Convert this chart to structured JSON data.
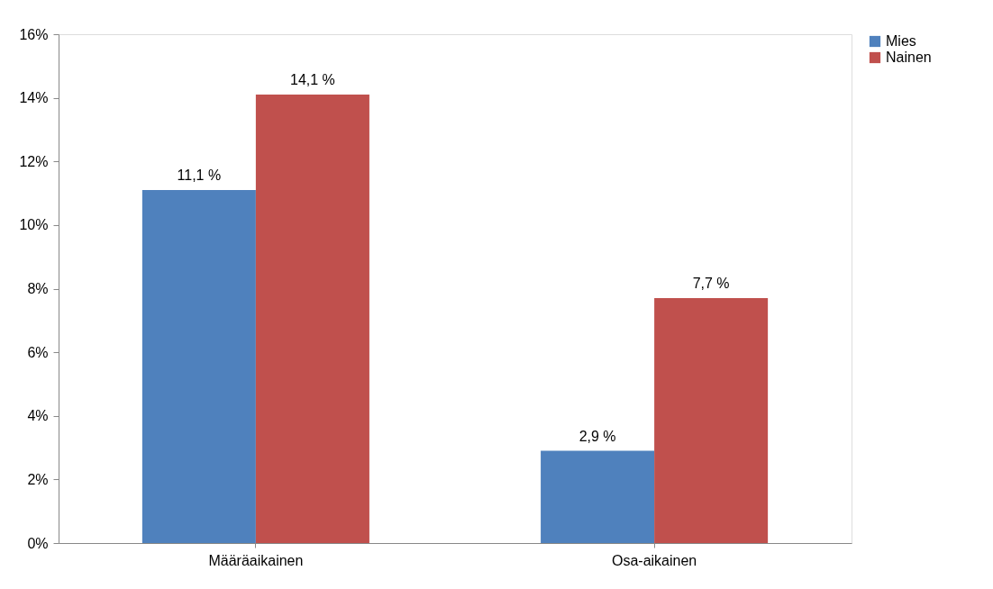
{
  "chart_data": {
    "type": "bar",
    "categories": [
      "Määräaikainen",
      "Osa-aikainen"
    ],
    "series": [
      {
        "name": "Mies",
        "color": "#4f81bd",
        "values": [
          11.1,
          2.9
        ],
        "value_labels": [
          "11,1 %",
          "2,9 %"
        ]
      },
      {
        "name": "Nainen",
        "color": "#c0504d",
        "values": [
          14.1,
          7.7
        ],
        "value_labels": [
          "14,1 %",
          "7,7 %"
        ]
      }
    ],
    "ylim": [
      0,
      16
    ],
    "yticks": [
      {
        "value": 0,
        "label": "0%"
      },
      {
        "value": 2,
        "label": "2%"
      },
      {
        "value": 4,
        "label": "4%"
      },
      {
        "value": 6,
        "label": "6%"
      },
      {
        "value": 8,
        "label": "8%"
      },
      {
        "value": 10,
        "label": "10%"
      },
      {
        "value": 12,
        "label": "12%"
      },
      {
        "value": 14,
        "label": "14%"
      },
      {
        "value": 16,
        "label": "16%"
      }
    ],
    "grid": false,
    "legend": "right"
  }
}
